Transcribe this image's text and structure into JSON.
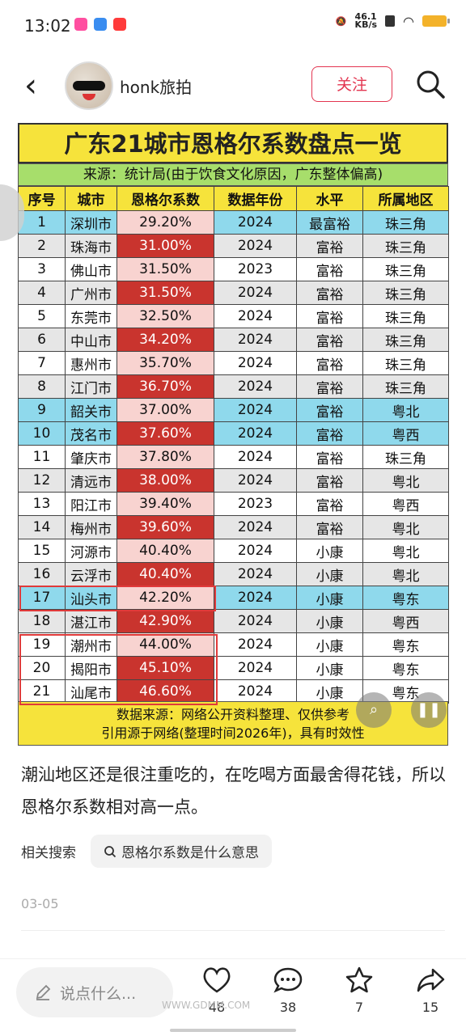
{
  "status_bar": {
    "time": "13:02",
    "net_speed": "46.1",
    "net_unit": "KB/s"
  },
  "header": {
    "username": "honk旅拍",
    "follow_label": "关注"
  },
  "image": {
    "title": "广东21城市恩格尔系数盘点一览",
    "source": "来源：统计局(由于饮食文化原因，广东整体偏高)",
    "columns": [
      "序号",
      "城市",
      "恩格尔系数",
      "数据年份",
      "水平",
      "所属地区"
    ],
    "rows": [
      [
        "1",
        "深圳市",
        "29.20%",
        "2024",
        "最富裕",
        "珠三角"
      ],
      [
        "2",
        "珠海市",
        "31.00%",
        "2024",
        "富裕",
        "珠三角"
      ],
      [
        "3",
        "佛山市",
        "31.50%",
        "2023",
        "富裕",
        "珠三角"
      ],
      [
        "4",
        "广州市",
        "31.50%",
        "2024",
        "富裕",
        "珠三角"
      ],
      [
        "5",
        "东莞市",
        "32.50%",
        "2024",
        "富裕",
        "珠三角"
      ],
      [
        "6",
        "中山市",
        "34.20%",
        "2024",
        "富裕",
        "珠三角"
      ],
      [
        "7",
        "惠州市",
        "35.70%",
        "2024",
        "富裕",
        "珠三角"
      ],
      [
        "8",
        "江门市",
        "36.70%",
        "2024",
        "富裕",
        "珠三角"
      ],
      [
        "9",
        "韶关市",
        "37.00%",
        "2024",
        "富裕",
        "粤北"
      ],
      [
        "10",
        "茂名市",
        "37.60%",
        "2024",
        "富裕",
        "粤西"
      ],
      [
        "11",
        "肇庆市",
        "37.80%",
        "2024",
        "富裕",
        "珠三角"
      ],
      [
        "12",
        "清远市",
        "38.00%",
        "2024",
        "富裕",
        "粤北"
      ],
      [
        "13",
        "阳江市",
        "39.40%",
        "2023",
        "富裕",
        "粤西"
      ],
      [
        "14",
        "梅州市",
        "39.60%",
        "2024",
        "富裕",
        "粤北"
      ],
      [
        "15",
        "河源市",
        "40.40%",
        "2024",
        "小康",
        "粤北"
      ],
      [
        "16",
        "云浮市",
        "40.40%",
        "2024",
        "小康",
        "粤北"
      ],
      [
        "17",
        "汕头市",
        "42.20%",
        "2024",
        "小康",
        "粤东"
      ],
      [
        "18",
        "湛江市",
        "42.90%",
        "2024",
        "小康",
        "粤西"
      ],
      [
        "19",
        "潮州市",
        "44.00%",
        "2024",
        "小康",
        "粤东"
      ],
      [
        "20",
        "揭阳市",
        "45.10%",
        "2024",
        "小康",
        "粤东"
      ],
      [
        "21",
        "汕尾市",
        "46.60%",
        "2024",
        "小康",
        "粤东"
      ]
    ],
    "footer_line1": "数据来源：网络公开资料整理、仅供参考",
    "footer_line2": "引用源于网络(整理时间2026年)，具有时效性"
  },
  "post": {
    "caption": "潮汕地区还是很注重吃的，在吃喝方面最舍得花钱，所以恩格尔系数相对高一点。",
    "related_label": "相关搜索",
    "related_query": "恩格尔系数是什么意思",
    "date": "03-05"
  },
  "bottom": {
    "comment_placeholder": "说点什么...",
    "likes": "48",
    "comments": "38",
    "favorites": "7",
    "shares": "15",
    "watermark": "WWW.GDMM.COM"
  },
  "colors": {
    "accent": "#e33550",
    "title_bg": "#f6e33b",
    "source_bg": "#a7de6b",
    "highlight_row": "#8fd9ec",
    "pct_dark": "#c9342e",
    "pct_light": "#f8d3d0"
  }
}
